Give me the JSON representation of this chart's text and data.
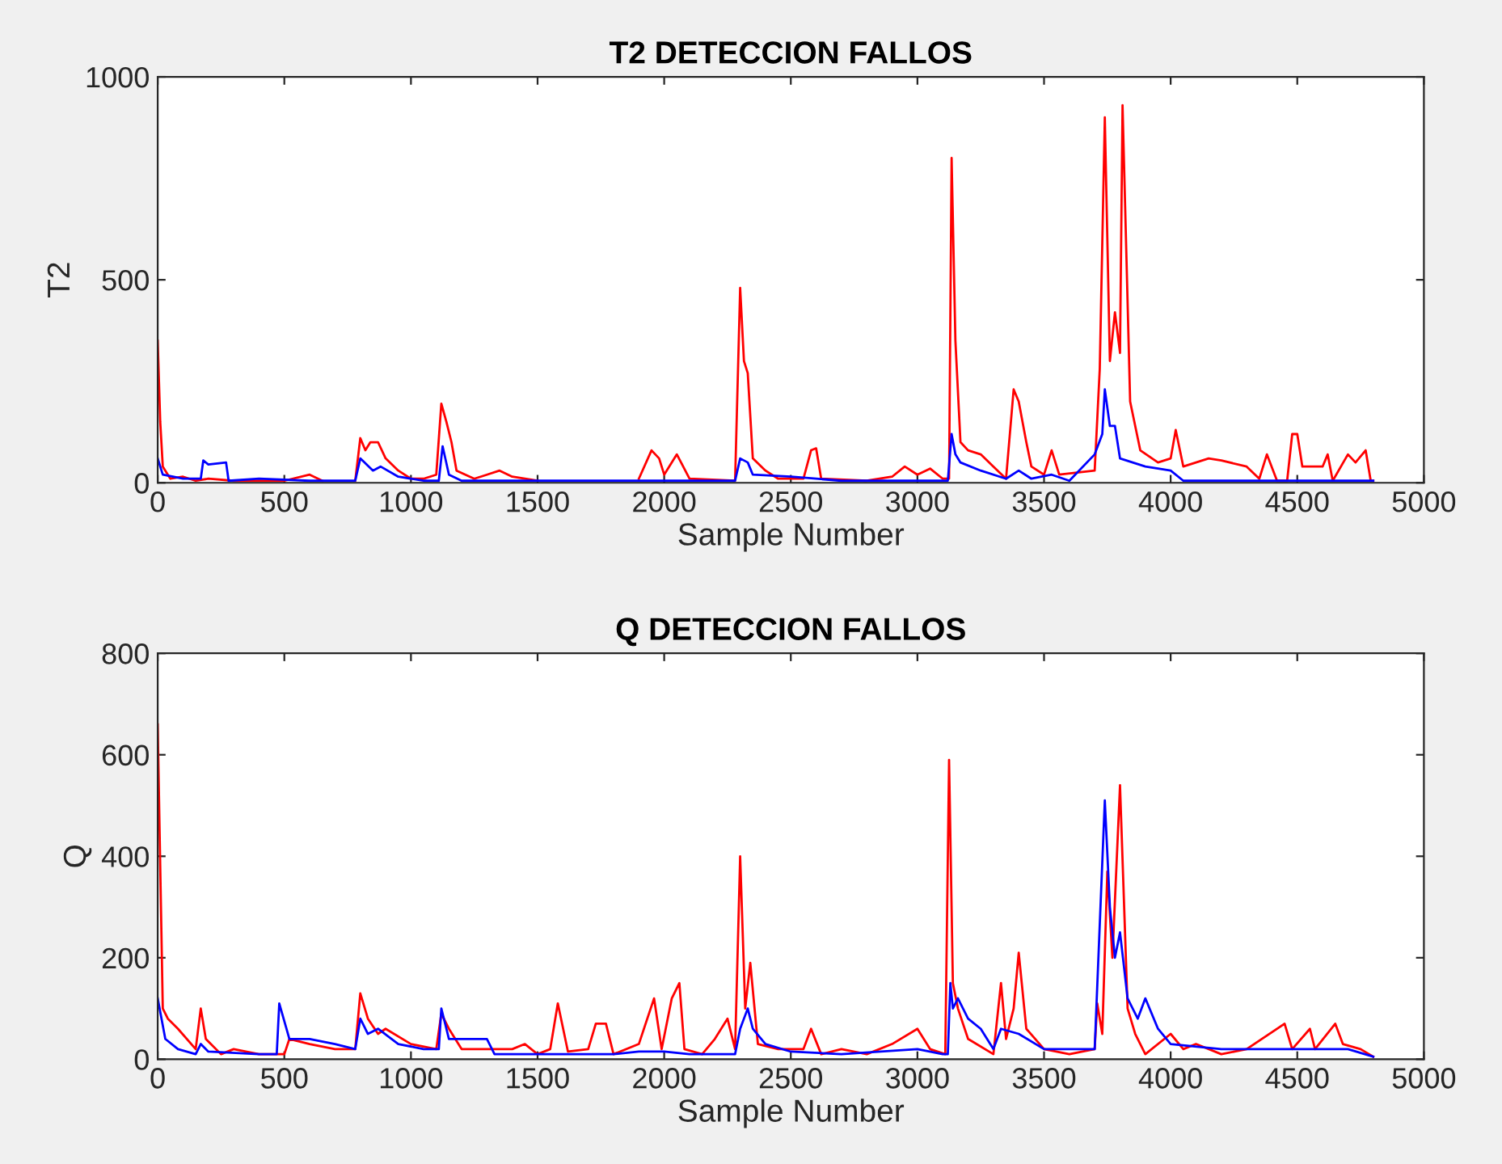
{
  "chart_data": [
    {
      "type": "line",
      "title": "T2 DETECCION FALLOS",
      "xlabel": "Sample Number",
      "ylabel": "T2",
      "xlim": [
        0,
        5000
      ],
      "ylim": [
        0,
        1000
      ],
      "xticks": [
        0,
        500,
        1000,
        1500,
        2000,
        2500,
        3000,
        3500,
        4000,
        4500,
        5000
      ],
      "yticks": [
        0,
        500,
        1000
      ],
      "grid": false,
      "legend": false,
      "series": [
        {
          "color": "#ff0000",
          "x": [
            0,
            10,
            20,
            50,
            100,
            150,
            200,
            300,
            500,
            600,
            650,
            700,
            780,
            800,
            820,
            840,
            870,
            900,
            950,
            1000,
            1050,
            1100,
            1120,
            1140,
            1160,
            1180,
            1250,
            1300,
            1350,
            1400,
            1500,
            1700,
            1900,
            1950,
            1980,
            2000,
            2050,
            2100,
            2280,
            2300,
            2315,
            2330,
            2350,
            2400,
            2450,
            2500,
            2550,
            2580,
            2600,
            2620,
            2800,
            2900,
            2950,
            3000,
            3050,
            3100,
            3125,
            3135,
            3150,
            3170,
            3200,
            3250,
            3300,
            3350,
            3380,
            3400,
            3430,
            3450,
            3500,
            3530,
            3560,
            3700,
            3720,
            3740,
            3760,
            3780,
            3800,
            3810,
            3840,
            3880,
            3950,
            4000,
            4020,
            4050,
            4150,
            4200,
            4300,
            4350,
            4380,
            4420,
            4460,
            4480,
            4500,
            4520,
            4600,
            4620,
            4640,
            4700,
            4730,
            4770,
            4790,
            4800
          ],
          "values": [
            350,
            150,
            40,
            10,
            15,
            5,
            10,
            5,
            5,
            20,
            5,
            null,
            5,
            110,
            80,
            100,
            100,
            60,
            30,
            10,
            10,
            20,
            195,
            150,
            100,
            30,
            10,
            20,
            30,
            15,
            5,
            null,
            10,
            80,
            60,
            20,
            70,
            10,
            5,
            480,
            300,
            270,
            60,
            30,
            10,
            10,
            10,
            80,
            85,
            10,
            5,
            15,
            40,
            20,
            35,
            10,
            10,
            800,
            350,
            100,
            80,
            70,
            40,
            10,
            230,
            200,
            100,
            40,
            20,
            80,
            20,
            30,
            280,
            900,
            300,
            420,
            320,
            930,
            200,
            80,
            50,
            60,
            130,
            40,
            60,
            55,
            40,
            10,
            70,
            5,
            5,
            120,
            120,
            40,
            40,
            70,
            5,
            70,
            50,
            80,
            5,
            5
          ]
        },
        {
          "color": "#0000ff",
          "x": [
            0,
            20,
            100,
            170,
            180,
            200,
            270,
            280,
            400,
            600,
            780,
            800,
            850,
            880,
            950,
            1050,
            1110,
            1125,
            1150,
            1200,
            2280,
            2300,
            2330,
            2350,
            2500,
            2600,
            2700,
            3120,
            3135,
            3150,
            3170,
            3250,
            3350,
            3400,
            3450,
            3530,
            3600,
            3700,
            3730,
            3740,
            3760,
            3780,
            3800,
            3900,
            4000,
            4050,
            4800
          ],
          "values": [
            60,
            20,
            10,
            10,
            55,
            45,
            50,
            5,
            10,
            5,
            5,
            60,
            30,
            40,
            15,
            5,
            5,
            90,
            20,
            5,
            5,
            60,
            50,
            20,
            15,
            10,
            5,
            5,
            120,
            70,
            50,
            30,
            10,
            30,
            10,
            20,
            5,
            70,
            120,
            230,
            140,
            140,
            60,
            40,
            30,
            5,
            5
          ]
        }
      ]
    },
    {
      "type": "line",
      "title": "Q DETECCION FALLOS",
      "xlabel": "Sample Number",
      "ylabel": "Q",
      "xlim": [
        0,
        5000
      ],
      "ylim": [
        0,
        800
      ],
      "xticks": [
        0,
        500,
        1000,
        1500,
        2000,
        2500,
        3000,
        3500,
        4000,
        4500,
        5000
      ],
      "yticks": [
        0,
        200,
        400,
        600,
        800
      ],
      "grid": false,
      "legend": false,
      "series": [
        {
          "color": "#ff0000",
          "x": [
            0,
            20,
            40,
            80,
            150,
            170,
            190,
            250,
            300,
            400,
            500,
            520,
            600,
            700,
            780,
            800,
            830,
            870,
            900,
            1000,
            1100,
            1120,
            1150,
            1200,
            1300,
            1400,
            1450,
            1500,
            1550,
            1580,
            1620,
            1700,
            1730,
            1770,
            1800,
            1900,
            1960,
            1990,
            2030,
            2060,
            2080,
            2150,
            2200,
            2250,
            2280,
            2300,
            2320,
            2340,
            2370,
            2450,
            2550,
            2580,
            2620,
            2700,
            2800,
            2900,
            3000,
            3050,
            3110,
            3125,
            3140,
            3160,
            3200,
            3300,
            3330,
            3350,
            3380,
            3400,
            3430,
            3500,
            3600,
            3700,
            3710,
            3730,
            3750,
            3770,
            3800,
            3830,
            3860,
            3900,
            4000,
            4050,
            4100,
            4200,
            4300,
            4450,
            4480,
            4550,
            4570,
            4650,
            4680,
            4750,
            4800
          ],
          "values": [
            660,
            100,
            80,
            60,
            20,
            100,
            40,
            10,
            20,
            10,
            10,
            40,
            30,
            20,
            20,
            130,
            80,
            50,
            60,
            30,
            20,
            90,
            60,
            20,
            20,
            20,
            30,
            10,
            20,
            110,
            15,
            20,
            70,
            70,
            10,
            30,
            120,
            20,
            120,
            150,
            20,
            10,
            40,
            80,
            20,
            400,
            100,
            190,
            30,
            20,
            20,
            60,
            10,
            20,
            10,
            30,
            60,
            20,
            10,
            590,
            150,
            100,
            40,
            10,
            150,
            40,
            100,
            210,
            60,
            20,
            10,
            20,
            110,
            50,
            370,
            200,
            540,
            100,
            50,
            10,
            50,
            20,
            30,
            10,
            20,
            70,
            20,
            60,
            20,
            70,
            30,
            20,
            5
          ]
        },
        {
          "color": "#0000ff",
          "x": [
            0,
            30,
            80,
            150,
            170,
            200,
            400,
            470,
            480,
            520,
            600,
            700,
            780,
            800,
            830,
            870,
            950,
            1050,
            1110,
            1120,
            1150,
            1200,
            1300,
            1330,
            1500,
            1800,
            1900,
            2000,
            2100,
            2200,
            2280,
            2300,
            2330,
            2350,
            2400,
            2500,
            2700,
            3000,
            3100,
            3120,
            3130,
            3140,
            3160,
            3200,
            3250,
            3300,
            3330,
            3400,
            3500,
            3700,
            3740,
            3760,
            3780,
            3800,
            3830,
            3870,
            3900,
            3950,
            4000,
            4200,
            4500,
            4700,
            4800
          ],
          "values": [
            120,
            40,
            20,
            10,
            30,
            15,
            10,
            10,
            110,
            40,
            40,
            30,
            20,
            80,
            50,
            60,
            30,
            20,
            20,
            100,
            40,
            40,
            40,
            10,
            10,
            10,
            15,
            15,
            10,
            10,
            10,
            60,
            100,
            60,
            30,
            15,
            10,
            20,
            10,
            10,
            150,
            100,
            120,
            80,
            60,
            20,
            60,
            50,
            20,
            20,
            510,
            300,
            200,
            250,
            120,
            80,
            120,
            60,
            30,
            20,
            20,
            20,
            5
          ]
        }
      ]
    }
  ]
}
